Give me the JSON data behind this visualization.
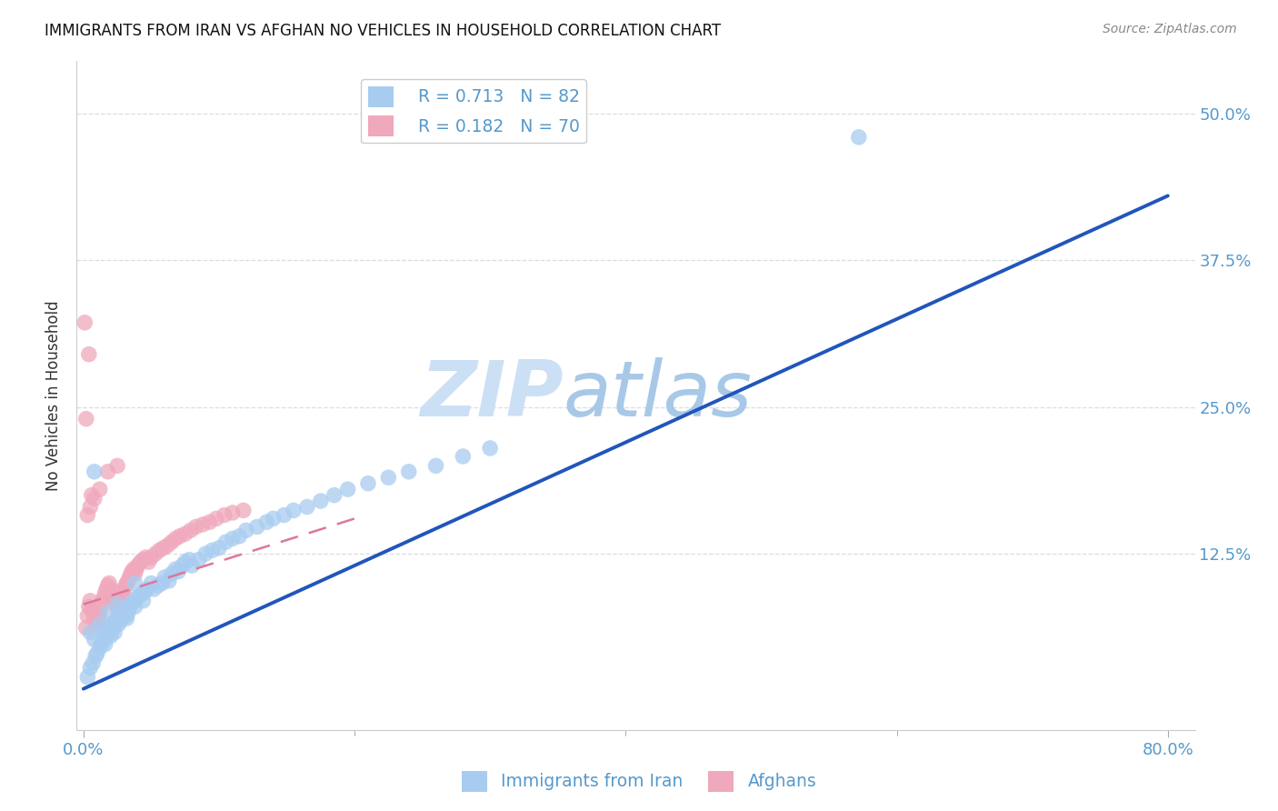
{
  "title": "IMMIGRANTS FROM IRAN VS AFGHAN NO VEHICLES IN HOUSEHOLD CORRELATION CHART",
  "source": "Source: ZipAtlas.com",
  "ylabel": "No Vehicles in Household",
  "ytick_labels": [
    "12.5%",
    "25.0%",
    "37.5%",
    "50.0%"
  ],
  "ytick_values": [
    0.125,
    0.25,
    0.375,
    0.5
  ],
  "xtick_minor_values": [
    0.2,
    0.4,
    0.6
  ],
  "xlim": [
    -0.005,
    0.82
  ],
  "ylim": [
    -0.025,
    0.545
  ],
  "legend_R_iran": "R = 0.713",
  "legend_N_iran": "N = 82",
  "legend_R_afghan": "R = 0.182",
  "legend_N_afghan": "N = 70",
  "color_iran": "#a8ccf0",
  "color_afghan": "#f0a8bc",
  "line_iran_color": "#2255bb",
  "line_afghan_color": "#dd7799",
  "watermark_zip_color": "#cce0f5",
  "watermark_atlas_color": "#a8c8e8",
  "background_color": "#ffffff",
  "grid_color": "#dddddd",
  "tick_label_color": "#5599cc",
  "title_color": "#111111",
  "source_color": "#888888",
  "ylabel_color": "#333333",
  "legend_text_color": "#5599cc",
  "iran_x": [
    0.003,
    0.005,
    0.007,
    0.009,
    0.01,
    0.012,
    0.013,
    0.014,
    0.015,
    0.015,
    0.016,
    0.017,
    0.018,
    0.019,
    0.02,
    0.02,
    0.021,
    0.022,
    0.023,
    0.024,
    0.025,
    0.026,
    0.027,
    0.028,
    0.029,
    0.03,
    0.031,
    0.032,
    0.033,
    0.034,
    0.035,
    0.037,
    0.038,
    0.04,
    0.042,
    0.044,
    0.045,
    0.047,
    0.05,
    0.052,
    0.055,
    0.058,
    0.06,
    0.063,
    0.065,
    0.068,
    0.07,
    0.073,
    0.075,
    0.078,
    0.08,
    0.085,
    0.09,
    0.095,
    0.1,
    0.105,
    0.11,
    0.115,
    0.12,
    0.128,
    0.135,
    0.14,
    0.148,
    0.155,
    0.165,
    0.175,
    0.185,
    0.195,
    0.21,
    0.225,
    0.24,
    0.26,
    0.28,
    0.3,
    0.005,
    0.008,
    0.012,
    0.018,
    0.025,
    0.038,
    0.572,
    0.008
  ],
  "iran_y": [
    0.02,
    0.028,
    0.032,
    0.038,
    0.04,
    0.045,
    0.048,
    0.05,
    0.052,
    0.06,
    0.048,
    0.055,
    0.058,
    0.062,
    0.065,
    0.055,
    0.06,
    0.063,
    0.058,
    0.068,
    0.07,
    0.065,
    0.068,
    0.072,
    0.075,
    0.078,
    0.072,
    0.07,
    0.075,
    0.08,
    0.082,
    0.085,
    0.08,
    0.088,
    0.09,
    0.085,
    0.092,
    0.095,
    0.1,
    0.095,
    0.098,
    0.1,
    0.105,
    0.102,
    0.108,
    0.112,
    0.11,
    0.115,
    0.118,
    0.12,
    0.115,
    0.12,
    0.125,
    0.128,
    0.13,
    0.135,
    0.138,
    0.14,
    0.145,
    0.148,
    0.152,
    0.155,
    0.158,
    0.162,
    0.165,
    0.17,
    0.175,
    0.18,
    0.185,
    0.19,
    0.195,
    0.2,
    0.208,
    0.215,
    0.058,
    0.052,
    0.065,
    0.075,
    0.082,
    0.1,
    0.48,
    0.195
  ],
  "afghan_x": [
    0.002,
    0.003,
    0.004,
    0.005,
    0.006,
    0.007,
    0.008,
    0.009,
    0.01,
    0.011,
    0.012,
    0.013,
    0.014,
    0.015,
    0.016,
    0.017,
    0.018,
    0.019,
    0.02,
    0.021,
    0.022,
    0.023,
    0.024,
    0.025,
    0.026,
    0.027,
    0.028,
    0.029,
    0.03,
    0.031,
    0.032,
    0.033,
    0.034,
    0.035,
    0.036,
    0.037,
    0.038,
    0.039,
    0.04,
    0.042,
    0.044,
    0.046,
    0.048,
    0.05,
    0.053,
    0.056,
    0.059,
    0.062,
    0.065,
    0.068,
    0.071,
    0.075,
    0.079,
    0.083,
    0.088,
    0.093,
    0.098,
    0.104,
    0.11,
    0.118,
    0.003,
    0.005,
    0.008,
    0.012,
    0.018,
    0.025,
    0.002,
    0.004,
    0.001,
    0.006
  ],
  "afghan_y": [
    0.062,
    0.072,
    0.08,
    0.085,
    0.078,
    0.075,
    0.07,
    0.065,
    0.068,
    0.072,
    0.075,
    0.08,
    0.085,
    0.088,
    0.092,
    0.095,
    0.098,
    0.1,
    0.095,
    0.09,
    0.088,
    0.085,
    0.082,
    0.078,
    0.082,
    0.085,
    0.088,
    0.092,
    0.095,
    0.098,
    0.1,
    0.102,
    0.105,
    0.108,
    0.11,
    0.112,
    0.108,
    0.112,
    0.115,
    0.118,
    0.12,
    0.122,
    0.118,
    0.122,
    0.125,
    0.128,
    0.13,
    0.132,
    0.135,
    0.138,
    0.14,
    0.142,
    0.145,
    0.148,
    0.15,
    0.152,
    0.155,
    0.158,
    0.16,
    0.162,
    0.158,
    0.165,
    0.172,
    0.18,
    0.195,
    0.2,
    0.24,
    0.295,
    0.322,
    0.175
  ],
  "iran_line_x": [
    0.0,
    0.8
  ],
  "iran_line_y": [
    0.01,
    0.43
  ],
  "afghan_line_x": [
    0.0,
    0.2
  ],
  "afghan_line_y": [
    0.082,
    0.155
  ]
}
